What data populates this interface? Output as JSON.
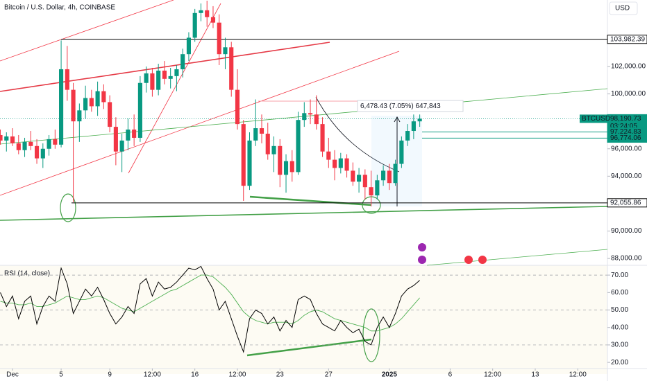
{
  "chart_data": {
    "type": "candlestick",
    "title": "Bitcoin / U.S. Dollar, 4h, COINBASE",
    "currency": "USD",
    "symbol": "BTCUSD",
    "countdown": "03:24:05",
    "measure": "6,478.43 (7.05%) 647,843",
    "up_color": "#089981",
    "down_color": "#f23645",
    "x": [
      -1,
      -0.5,
      0,
      0.5,
      1,
      1.5,
      2,
      2.5,
      3,
      3.5,
      4,
      4.5,
      5,
      5.5,
      6,
      6.5,
      7,
      7.5,
      8,
      8.5,
      9,
      9.5,
      10,
      10.5,
      11,
      11.5,
      12,
      12.5,
      13,
      13.5,
      14,
      14.5,
      15,
      15.5,
      16,
      16.5,
      17,
      17.5,
      18,
      18.5,
      19,
      19.5,
      20,
      20.5,
      21,
      21.5,
      22,
      22.5,
      23,
      23.5,
      24,
      24.5,
      25,
      25.5,
      26,
      26.5,
      27,
      27.5,
      28,
      28.5,
      29,
      29.5,
      30,
      30.5,
      31,
      31.5,
      32,
      32.5,
      33,
      33.5
    ],
    "open": [
      97000,
      96600,
      96900,
      96400,
      95900,
      96500,
      96200,
      95300,
      96000,
      96700,
      96300,
      101800,
      100300,
      98000,
      98800,
      99700,
      99100,
      100200,
      99400,
      97600,
      95800,
      96600,
      97400,
      96800,
      100800,
      101500,
      100300,
      101700,
      101100,
      101300,
      101800,
      102900,
      104100,
      105900,
      106100,
      105600,
      105200,
      102900,
      103400,
      100300,
      97800,
      93300,
      96600,
      97500,
      97100,
      95600,
      96200,
      94100,
      95100,
      94300,
      98100,
      98600,
      98500,
      97800,
      95800,
      95200,
      94600,
      95300,
      94400,
      93600,
      94100,
      93200,
      92600,
      93700,
      94400,
      93500,
      94900,
      96600,
      97300,
      98000
    ],
    "high": [
      97400,
      97200,
      97500,
      97000,
      96800,
      97300,
      96700,
      96400,
      97000,
      97400,
      103900,
      103500,
      100800,
      99300,
      100600,
      100300,
      100900,
      100700,
      99900,
      98300,
      97100,
      98200,
      98500,
      101300,
      102000,
      101900,
      102200,
      102400,
      101900,
      102100,
      103300,
      104500,
      106200,
      106600,
      106800,
      106400,
      105800,
      104100,
      103800,
      101800,
      98100,
      97200,
      99600,
      98500,
      97900,
      96900,
      96700,
      95600,
      95900,
      98700,
      99400,
      99600,
      99900,
      98300,
      96800,
      95900,
      95700,
      95600,
      95000,
      94600,
      94500,
      94400,
      94100,
      94800,
      94900,
      95200,
      96900,
      97800,
      98500,
      98500
    ],
    "low": [
      96300,
      95800,
      96200,
      95600,
      95400,
      95900,
      94900,
      94600,
      95500,
      96000,
      96100,
      99500,
      92100,
      96500,
      98200,
      98700,
      98400,
      98900,
      97200,
      94800,
      94300,
      95900,
      96200,
      96500,
      100100,
      99800,
      99900,
      100700,
      100400,
      100200,
      101200,
      102400,
      103800,
      105300,
      104900,
      104800,
      102100,
      101800,
      99800,
      97400,
      92200,
      93000,
      96200,
      96400,
      95200,
      94300,
      93200,
      92800,
      93600,
      94100,
      97600,
      97800,
      97400,
      95400,
      94600,
      93700,
      94200,
      93900,
      93300,
      92800,
      92300,
      91800,
      92300,
      93300,
      93000,
      93300,
      94600,
      96200,
      96700,
      97600
    ],
    "close": [
      96600,
      96900,
      96400,
      95900,
      96500,
      96200,
      95300,
      96000,
      96700,
      96300,
      101800,
      100300,
      98000,
      98800,
      99700,
      99100,
      100200,
      99400,
      97600,
      95800,
      96600,
      97400,
      96800,
      100800,
      101500,
      100300,
      101700,
      101100,
      101300,
      101800,
      102900,
      104100,
      105900,
      106100,
      105600,
      105200,
      102900,
      103400,
      100300,
      97800,
      93300,
      96600,
      97500,
      97100,
      95600,
      96200,
      94100,
      95100,
      94300,
      98100,
      98600,
      98500,
      97800,
      95800,
      95200,
      94600,
      95300,
      94400,
      93600,
      94100,
      93200,
      92600,
      93700,
      94400,
      93500,
      94900,
      96600,
      97300,
      98000,
      98190.73
    ],
    "xlim": [
      -1.03,
      48.94
    ],
    "ylim": [
      87500,
      106850
    ],
    "xticks": [
      {
        "value": 0,
        "label": "Dec"
      },
      {
        "value": 4,
        "label": "5"
      },
      {
        "value": 8,
        "label": "9"
      },
      {
        "value": 11.5,
        "label": "12:00"
      },
      {
        "value": 15,
        "label": "16"
      },
      {
        "value": 18.5,
        "label": "12:00"
      },
      {
        "value": 22,
        "label": "23"
      },
      {
        "value": 26,
        "label": "27"
      },
      {
        "value": 31,
        "label": "2025"
      },
      {
        "value": 36,
        "label": "6"
      },
      {
        "value": 39.5,
        "label": "12:00"
      },
      {
        "value": 43,
        "label": "13"
      },
      {
        "value": 46.5,
        "label": "12:00"
      }
    ],
    "yticks": [
      {
        "value": 102000,
        "label": "102,000.00"
      },
      {
        "value": 100000,
        "label": "100,000.00"
      },
      {
        "value": 96000,
        "label": "96,000.00"
      },
      {
        "value": 94000,
        "label": "94,000.00"
      },
      {
        "value": 90000,
        "label": "90,000.00"
      },
      {
        "value": 88000,
        "label": "88,000.00"
      }
    ],
    "price_labels": [
      {
        "value": 103982.39,
        "label": "103,982.39",
        "color": "#000000"
      },
      {
        "value": 98190.73,
        "label": "98,190.73",
        "color": "#089981"
      },
      {
        "value": 97224.83,
        "label": "97,224.83",
        "color": "#089981"
      },
      {
        "value": 96774.06,
        "label": "96,774.06",
        "color": "#089981"
      },
      {
        "value": 92055.86,
        "label": "92,055.86",
        "color": "#000000"
      }
    ],
    "rsi": {
      "label": "RSI (14, close)",
      "color": "#000000",
      "ma_color": "#4caf50",
      "values": [
        60,
        52,
        58,
        45,
        55,
        58,
        42,
        52,
        58,
        55,
        74,
        65,
        48,
        55,
        62,
        58,
        63,
        56,
        48,
        42,
        46,
        52,
        48,
        65,
        68,
        58,
        66,
        62,
        63,
        66,
        70,
        74,
        73,
        75,
        68,
        62,
        50,
        55,
        45,
        35,
        26,
        45,
        50,
        48,
        42,
        46,
        38,
        44,
        40,
        56,
        58,
        56,
        48,
        42,
        40,
        38,
        44,
        40,
        37,
        39,
        32,
        30,
        40,
        46,
        40,
        48,
        58,
        62,
        64,
        67
      ],
      "ma_values": [
        55,
        54,
        54,
        53,
        53,
        54,
        52,
        52,
        53,
        54,
        56,
        58,
        57,
        56,
        56,
        57,
        58,
        57,
        55,
        53,
        51,
        50,
        49,
        51,
        53,
        55,
        57,
        59,
        61,
        62,
        64,
        66,
        68,
        70,
        70,
        69,
        66,
        63,
        59,
        54,
        49,
        46,
        44,
        43,
        42,
        43,
        43,
        43,
        42,
        44,
        47,
        49,
        50,
        49,
        47,
        45,
        44,
        43,
        42,
        41,
        40,
        38,
        38,
        39,
        40,
        42,
        45,
        49,
        53,
        57
      ],
      "ylim": [
        13.3,
        75.6
      ],
      "yticks": [
        {
          "value": 70,
          "label": "70.00"
        },
        {
          "value": 60,
          "label": "60.00"
        },
        {
          "value": 50,
          "label": "50.00"
        },
        {
          "value": 40,
          "label": "40.00"
        },
        {
          "value": 30,
          "label": "30.00"
        },
        {
          "value": 20,
          "label": "20.00"
        }
      ],
      "bands": [
        70,
        50,
        30
      ]
    }
  }
}
